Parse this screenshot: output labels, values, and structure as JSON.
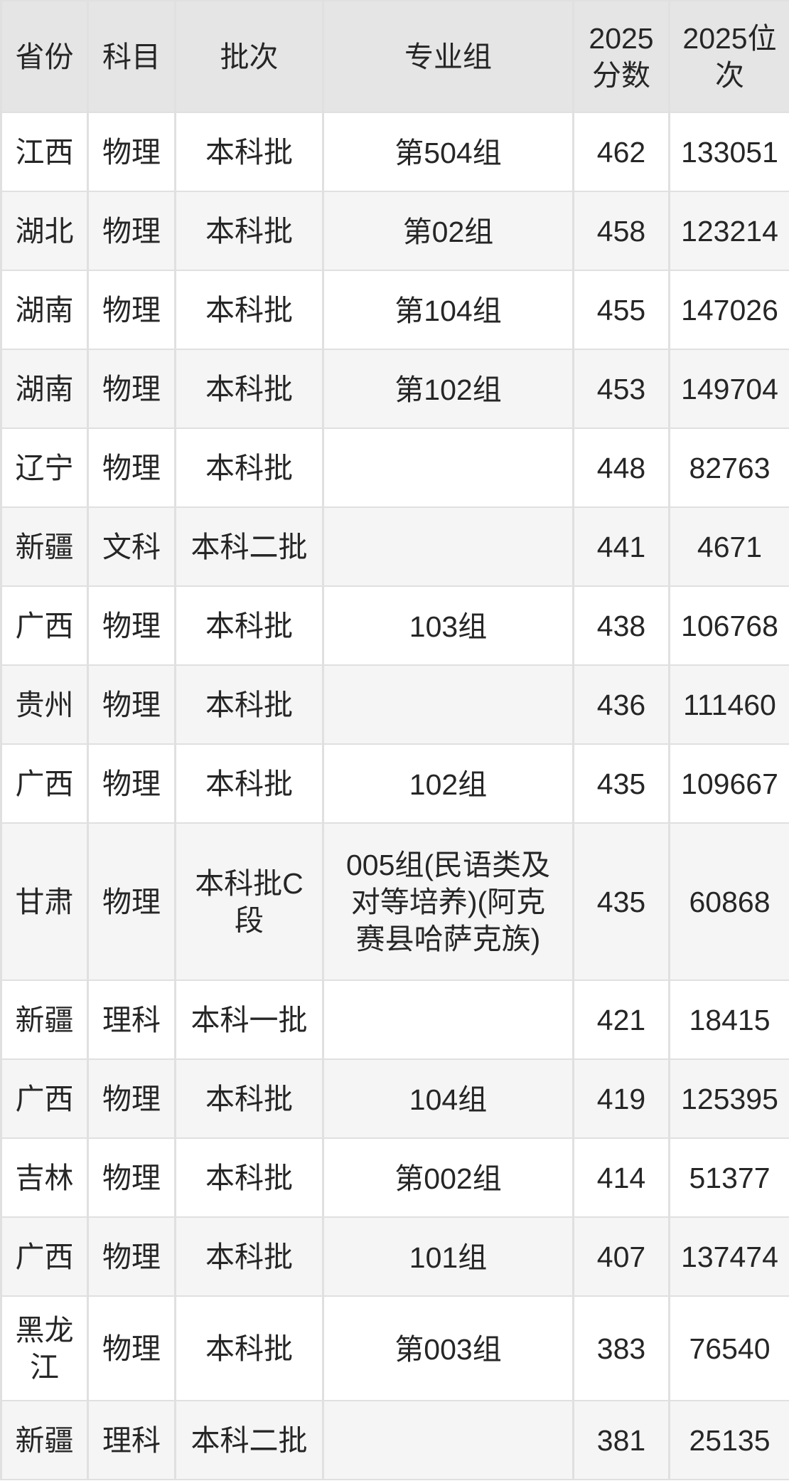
{
  "theme": {
    "header_bg": "#e5e5e5",
    "row_alt_bg": "#f5f5f5",
    "border_color": "rgba(0,0,0,0.12)",
    "text_color": "#262626",
    "page_bg": "#ffffff"
  },
  "table": {
    "columns": [
      {
        "key": "province",
        "label": "省份"
      },
      {
        "key": "subject",
        "label": "科目"
      },
      {
        "key": "batch",
        "label": "批次"
      },
      {
        "key": "major_group",
        "label": "专业组"
      },
      {
        "key": "score_2025",
        "label": "2025分数"
      },
      {
        "key": "rank_2025",
        "label": "2025位次"
      }
    ],
    "rows": [
      {
        "province": "江西",
        "subject": "物理",
        "batch": "本科批",
        "major_group": "第504组",
        "score_2025": "462",
        "rank_2025": "133051"
      },
      {
        "province": "湖北",
        "subject": "物理",
        "batch": "本科批",
        "major_group": "第02组",
        "score_2025": "458",
        "rank_2025": "123214"
      },
      {
        "province": "湖南",
        "subject": "物理",
        "batch": "本科批",
        "major_group": "第104组",
        "score_2025": "455",
        "rank_2025": "147026"
      },
      {
        "province": "湖南",
        "subject": "物理",
        "batch": "本科批",
        "major_group": "第102组",
        "score_2025": "453",
        "rank_2025": "149704"
      },
      {
        "province": "辽宁",
        "subject": "物理",
        "batch": "本科批",
        "major_group": "",
        "score_2025": "448",
        "rank_2025": "82763"
      },
      {
        "province": "新疆",
        "subject": "文科",
        "batch": "本科二批",
        "major_group": "",
        "score_2025": "441",
        "rank_2025": "4671"
      },
      {
        "province": "广西",
        "subject": "物理",
        "batch": "本科批",
        "major_group": "103组",
        "score_2025": "438",
        "rank_2025": "106768"
      },
      {
        "province": "贵州",
        "subject": "物理",
        "batch": "本科批",
        "major_group": "",
        "score_2025": "436",
        "rank_2025": "111460"
      },
      {
        "province": "广西",
        "subject": "物理",
        "batch": "本科批",
        "major_group": "102组",
        "score_2025": "435",
        "rank_2025": "109667"
      },
      {
        "province": "甘肃",
        "subject": "物理",
        "batch": "本科批C段",
        "major_group": "005组(民语类及对等培养)(阿克赛县哈萨克族)",
        "score_2025": "435",
        "rank_2025": "60868"
      },
      {
        "province": "新疆",
        "subject": "理科",
        "batch": "本科一批",
        "major_group": "",
        "score_2025": "421",
        "rank_2025": "18415"
      },
      {
        "province": "广西",
        "subject": "物理",
        "batch": "本科批",
        "major_group": "104组",
        "score_2025": "419",
        "rank_2025": "125395"
      },
      {
        "province": "吉林",
        "subject": "物理",
        "batch": "本科批",
        "major_group": "第002组",
        "score_2025": "414",
        "rank_2025": "51377"
      },
      {
        "province": "广西",
        "subject": "物理",
        "batch": "本科批",
        "major_group": "101组",
        "score_2025": "407",
        "rank_2025": "137474"
      },
      {
        "province": "黑龙江",
        "subject": "物理",
        "batch": "本科批",
        "major_group": "第003组",
        "score_2025": "383",
        "rank_2025": "76540"
      },
      {
        "province": "新疆",
        "subject": "理科",
        "batch": "本科二批",
        "major_group": "",
        "score_2025": "381",
        "rank_2025": "25135"
      }
    ]
  }
}
